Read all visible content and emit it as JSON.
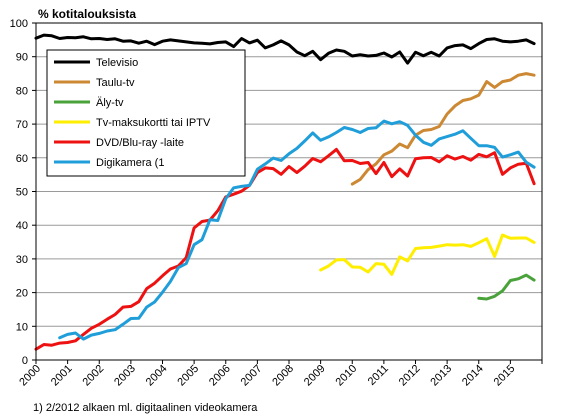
{
  "chart_data": {
    "type": "line",
    "ylabel": "% kotitalouksista",
    "ylim": [
      0,
      100
    ],
    "xlim": [
      2000,
      2016
    ],
    "yticks": [
      0,
      10,
      20,
      30,
      40,
      50,
      60,
      70,
      80,
      90,
      100
    ],
    "xticks": [
      "2000",
      "2001",
      "2002",
      "2003",
      "2004",
      "2005",
      "2006",
      "2007",
      "2008",
      "2009",
      "2010",
      "2011",
      "2012",
      "2013",
      "2014",
      "2015"
    ],
    "grid": "horizontal",
    "legend_placement": "top-left",
    "footnote": "1) 2/2012 alkaen ml. digitaalinen videokamera",
    "series": [
      {
        "name": "Televisio",
        "color": "#000000",
        "points": [
          [
            2000,
            95.5
          ],
          [
            2000.25,
            96.4
          ],
          [
            2000.5,
            96.2
          ],
          [
            2000.75,
            95.4
          ],
          [
            2001,
            95.7
          ],
          [
            2001.25,
            95.6
          ],
          [
            2001.5,
            95.9
          ],
          [
            2001.75,
            95.3
          ],
          [
            2002,
            95.4
          ],
          [
            2002.25,
            95.1
          ],
          [
            2002.5,
            95.3
          ],
          [
            2002.75,
            94.6
          ],
          [
            2003,
            94.7
          ],
          [
            2003.25,
            94.0
          ],
          [
            2003.5,
            94.6
          ],
          [
            2003.75,
            93.6
          ],
          [
            2004,
            94.6
          ],
          [
            2004.25,
            95.0
          ],
          [
            2004.5,
            94.7
          ],
          [
            2004.75,
            94.4
          ],
          [
            2005,
            94.1
          ],
          [
            2005.25,
            94.0
          ],
          [
            2005.5,
            93.8
          ],
          [
            2005.75,
            94.2
          ],
          [
            2006,
            94.4
          ],
          [
            2006.25,
            93.0
          ],
          [
            2006.5,
            95.4
          ],
          [
            2006.75,
            94.1
          ],
          [
            2007,
            94.9
          ],
          [
            2007.25,
            92.6
          ],
          [
            2007.5,
            93.5
          ],
          [
            2007.75,
            94.7
          ],
          [
            2008,
            93.5
          ],
          [
            2008.25,
            91.4
          ],
          [
            2008.5,
            90.3
          ],
          [
            2008.75,
            91.6
          ],
          [
            2009,
            89.1
          ],
          [
            2009.25,
            91.0
          ],
          [
            2009.5,
            92.0
          ],
          [
            2009.75,
            91.6
          ],
          [
            2010,
            90.2
          ],
          [
            2010.25,
            90.6
          ],
          [
            2010.5,
            90.2
          ],
          [
            2010.75,
            90.4
          ],
          [
            2011,
            91.1
          ],
          [
            2011.25,
            89.9
          ],
          [
            2011.5,
            91.4
          ],
          [
            2011.75,
            88.1
          ],
          [
            2012,
            91.3
          ],
          [
            2012.25,
            90.3
          ],
          [
            2012.5,
            91.3
          ],
          [
            2012.75,
            90.2
          ],
          [
            2013,
            92.6
          ],
          [
            2013.25,
            93.3
          ],
          [
            2013.5,
            93.5
          ],
          [
            2013.75,
            92.4
          ],
          [
            2014,
            93.9
          ],
          [
            2014.25,
            95.1
          ],
          [
            2014.5,
            95.3
          ],
          [
            2014.75,
            94.6
          ],
          [
            2015,
            94.4
          ],
          [
            2015.25,
            94.6
          ],
          [
            2015.5,
            95.0
          ],
          [
            2015.75,
            93.9
          ]
        ]
      },
      {
        "name": "Taulu-tv",
        "color": "#cc8833",
        "points": [
          [
            2010,
            52.2
          ],
          [
            2010.25,
            53.6
          ],
          [
            2010.5,
            56.5
          ],
          [
            2010.75,
            58.2
          ],
          [
            2011,
            60.9
          ],
          [
            2011.25,
            62.0
          ],
          [
            2011.5,
            64.1
          ],
          [
            2011.75,
            63.0
          ],
          [
            2012,
            66.7
          ],
          [
            2012.25,
            68.1
          ],
          [
            2012.5,
            68.4
          ],
          [
            2012.75,
            69.3
          ],
          [
            2013,
            73.0
          ],
          [
            2013.25,
            75.4
          ],
          [
            2013.5,
            77.0
          ],
          [
            2013.75,
            77.5
          ],
          [
            2014,
            78.6
          ],
          [
            2014.25,
            82.6
          ],
          [
            2014.5,
            80.9
          ],
          [
            2014.75,
            82.6
          ],
          [
            2015,
            83.1
          ],
          [
            2015.25,
            84.5
          ],
          [
            2015.5,
            85.0
          ],
          [
            2015.75,
            84.5
          ]
        ]
      },
      {
        "name": "Äly-tv",
        "color": "#4aa23a",
        "points": [
          [
            2014,
            18.3
          ],
          [
            2014.25,
            18.1
          ],
          [
            2014.5,
            18.9
          ],
          [
            2014.75,
            20.5
          ],
          [
            2015,
            23.6
          ],
          [
            2015.25,
            24.1
          ],
          [
            2015.5,
            25.2
          ],
          [
            2015.75,
            23.7
          ]
        ]
      },
      {
        "name": "Tv-maksukortti tai IPTV",
        "color": "#ffee00",
        "points": [
          [
            2009,
            26.7
          ],
          [
            2009.25,
            27.9
          ],
          [
            2009.5,
            29.7
          ],
          [
            2009.75,
            29.8
          ],
          [
            2010,
            27.6
          ],
          [
            2010.25,
            27.5
          ],
          [
            2010.5,
            26.1
          ],
          [
            2010.75,
            28.6
          ],
          [
            2011,
            28.4
          ],
          [
            2011.25,
            25.4
          ],
          [
            2011.5,
            30.6
          ],
          [
            2011.75,
            29.4
          ],
          [
            2012,
            33.1
          ],
          [
            2012.25,
            33.3
          ],
          [
            2012.5,
            33.4
          ],
          [
            2012.75,
            33.8
          ],
          [
            2013,
            34.2
          ],
          [
            2013.25,
            34.1
          ],
          [
            2013.5,
            34.2
          ],
          [
            2013.75,
            33.7
          ],
          [
            2014,
            34.8
          ],
          [
            2014.25,
            36.0
          ],
          [
            2014.5,
            30.7
          ],
          [
            2014.75,
            37.1
          ],
          [
            2015,
            36.1
          ],
          [
            2015.25,
            36.2
          ],
          [
            2015.5,
            36.2
          ],
          [
            2015.75,
            34.9
          ]
        ]
      },
      {
        "name": "DVD/Blu-ray -laite",
        "color": "#ee1111",
        "points": [
          [
            2000,
            3.2
          ],
          [
            2000.25,
            4.6
          ],
          [
            2000.5,
            4.4
          ],
          [
            2000.75,
            5.0
          ],
          [
            2001,
            5.2
          ],
          [
            2001.25,
            5.7
          ],
          [
            2001.5,
            7.6
          ],
          [
            2001.75,
            9.4
          ],
          [
            2002,
            10.6
          ],
          [
            2002.25,
            12.1
          ],
          [
            2002.5,
            13.5
          ],
          [
            2002.75,
            15.7
          ],
          [
            2003,
            15.9
          ],
          [
            2003.25,
            17.3
          ],
          [
            2003.5,
            21.2
          ],
          [
            2003.75,
            22.8
          ],
          [
            2004,
            25.0
          ],
          [
            2004.25,
            27.0
          ],
          [
            2004.5,
            27.9
          ],
          [
            2004.75,
            30.4
          ],
          [
            2005,
            39.2
          ],
          [
            2005.25,
            41.1
          ],
          [
            2005.5,
            41.5
          ],
          [
            2005.75,
            44.3
          ],
          [
            2006,
            48.4
          ],
          [
            2006.25,
            49.2
          ],
          [
            2006.5,
            50.1
          ],
          [
            2006.75,
            51.8
          ],
          [
            2007,
            55.6
          ],
          [
            2007.25,
            57.0
          ],
          [
            2007.5,
            56.8
          ],
          [
            2007.75,
            55.1
          ],
          [
            2008,
            57.4
          ],
          [
            2008.25,
            55.6
          ],
          [
            2008.5,
            57.5
          ],
          [
            2008.75,
            59.8
          ],
          [
            2009,
            58.8
          ],
          [
            2009.25,
            60.6
          ],
          [
            2009.5,
            62.5
          ],
          [
            2009.75,
            59.1
          ],
          [
            2010,
            59.2
          ],
          [
            2010.25,
            58.3
          ],
          [
            2010.5,
            58.6
          ],
          [
            2010.75,
            55.3
          ],
          [
            2011,
            58.6
          ],
          [
            2011.25,
            54.4
          ],
          [
            2011.5,
            56.7
          ],
          [
            2011.75,
            54.6
          ],
          [
            2012,
            59.7
          ],
          [
            2012.25,
            60.0
          ],
          [
            2012.5,
            60.1
          ],
          [
            2012.75,
            58.8
          ],
          [
            2013,
            60.6
          ],
          [
            2013.25,
            59.6
          ],
          [
            2013.5,
            60.4
          ],
          [
            2013.75,
            59.3
          ],
          [
            2014,
            61.0
          ],
          [
            2014.25,
            60.3
          ],
          [
            2014.5,
            61.5
          ],
          [
            2014.75,
            55.1
          ],
          [
            2015,
            57.0
          ],
          [
            2015.25,
            58.1
          ],
          [
            2015.5,
            58.4
          ],
          [
            2015.75,
            52.3
          ]
        ]
      },
      {
        "name": "Digikamera (1",
        "color": "#1f9ed9",
        "points": [
          [
            2000.75,
            6.6
          ],
          [
            2001,
            7.6
          ],
          [
            2001.25,
            8.0
          ],
          [
            2001.5,
            6.2
          ],
          [
            2001.75,
            7.4
          ],
          [
            2002,
            7.9
          ],
          [
            2002.25,
            8.6
          ],
          [
            2002.5,
            9.0
          ],
          [
            2002.75,
            10.6
          ],
          [
            2003,
            12.3
          ],
          [
            2003.25,
            12.4
          ],
          [
            2003.5,
            15.7
          ],
          [
            2003.75,
            17.2
          ],
          [
            2004,
            20.1
          ],
          [
            2004.25,
            23.3
          ],
          [
            2004.5,
            27.4
          ],
          [
            2004.75,
            28.6
          ],
          [
            2005,
            34.2
          ],
          [
            2005.25,
            35.7
          ],
          [
            2005.5,
            41.6
          ],
          [
            2005.75,
            41.4
          ],
          [
            2006,
            47.9
          ],
          [
            2006.25,
            51.1
          ],
          [
            2006.5,
            51.5
          ],
          [
            2006.75,
            51.8
          ],
          [
            2007,
            56.6
          ],
          [
            2007.25,
            58.2
          ],
          [
            2007.5,
            59.9
          ],
          [
            2007.75,
            59.2
          ],
          [
            2008,
            61.2
          ],
          [
            2008.25,
            62.8
          ],
          [
            2008.5,
            65.0
          ],
          [
            2008.75,
            67.4
          ],
          [
            2009,
            65.2
          ],
          [
            2009.25,
            66.2
          ],
          [
            2009.5,
            67.5
          ],
          [
            2009.75,
            69.0
          ],
          [
            2010,
            68.4
          ],
          [
            2010.25,
            67.5
          ],
          [
            2010.5,
            68.7
          ],
          [
            2010.75,
            68.9
          ],
          [
            2011,
            70.9
          ],
          [
            2011.25,
            70.1
          ],
          [
            2011.5,
            70.7
          ],
          [
            2011.75,
            69.6
          ],
          [
            2012,
            66.7
          ],
          [
            2012.25,
            64.6
          ],
          [
            2012.5,
            63.7
          ],
          [
            2012.75,
            65.6
          ],
          [
            2013,
            66.3
          ],
          [
            2013.25,
            67.0
          ],
          [
            2013.5,
            68.0
          ],
          [
            2013.75,
            65.8
          ],
          [
            2014,
            63.6
          ],
          [
            2014.25,
            63.6
          ],
          [
            2014.5,
            63.1
          ],
          [
            2014.75,
            60.2
          ],
          [
            2015,
            60.9
          ],
          [
            2015.25,
            61.7
          ],
          [
            2015.5,
            58.7
          ],
          [
            2015.75,
            57.2
          ]
        ]
      }
    ]
  }
}
